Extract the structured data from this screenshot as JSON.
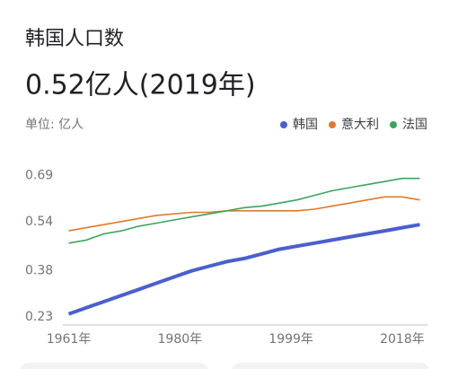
{
  "chart_data": {
    "type": "line",
    "title": "韩国人口数",
    "subtitle": "0.52亿人(2019年)",
    "unit_label": "单位: 亿人",
    "x": [
      1961,
      1964,
      1967,
      1970,
      1973,
      1976,
      1979,
      1982,
      1985,
      1988,
      1991,
      1994,
      1997,
      2000,
      2003,
      2006,
      2009,
      2012,
      2015,
      2018,
      2021
    ],
    "series": [
      {
        "name": "韩国",
        "color": "#4a5fcf",
        "values": [
          0.24,
          0.26,
          0.28,
          0.3,
          0.32,
          0.34,
          0.36,
          0.38,
          0.395,
          0.41,
          0.42,
          0.435,
          0.45,
          0.46,
          0.47,
          0.48,
          0.49,
          0.5,
          0.51,
          0.52,
          0.53
        ]
      },
      {
        "name": "意大利",
        "color": "#e07a2a",
        "values": [
          0.51,
          0.52,
          0.53,
          0.54,
          0.55,
          0.56,
          0.565,
          0.57,
          0.57,
          0.575,
          0.575,
          0.575,
          0.575,
          0.575,
          0.58,
          0.59,
          0.6,
          0.61,
          0.62,
          0.62,
          0.61
        ]
      },
      {
        "name": "法国",
        "color": "#3aa55c",
        "values": [
          0.47,
          0.48,
          0.5,
          0.51,
          0.525,
          0.535,
          0.545,
          0.555,
          0.565,
          0.575,
          0.585,
          0.59,
          0.6,
          0.61,
          0.625,
          0.64,
          0.65,
          0.66,
          0.67,
          0.68,
          0.68
        ]
      }
    ],
    "xlim": [
      1960,
      2022
    ],
    "xticks": [
      {
        "value": 1961,
        "label": "1961年"
      },
      {
        "value": 1980,
        "label": "1980年"
      },
      {
        "value": 1999,
        "label": "1999年"
      },
      {
        "value": 2018,
        "label": "2018年"
      }
    ],
    "ylim": [
      0.21,
      0.72
    ],
    "yticks": [
      0.23,
      0.38,
      0.54,
      0.69
    ]
  }
}
